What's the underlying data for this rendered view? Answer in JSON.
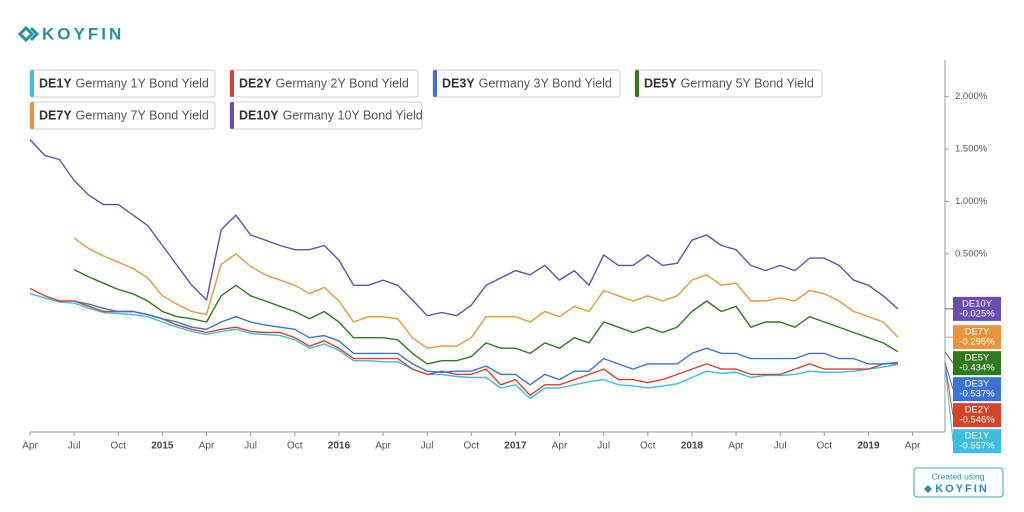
{
  "brand": "KOYFIN",
  "credit": "Created using",
  "chart_data": {
    "type": "line",
    "x": [
      "2014-04",
      "2014-05",
      "2014-06",
      "2014-07",
      "2014-08",
      "2014-09",
      "2014-10",
      "2014-11",
      "2014-12",
      "2015-01",
      "2015-02",
      "2015-03",
      "2015-04",
      "2015-05",
      "2015-06",
      "2015-07",
      "2015-08",
      "2015-09",
      "2015-10",
      "2015-11",
      "2015-12",
      "2016-01",
      "2016-02",
      "2016-03",
      "2016-04",
      "2016-05",
      "2016-06",
      "2016-07",
      "2016-08",
      "2016-09",
      "2016-10",
      "2016-11",
      "2016-12",
      "2017-01",
      "2017-02",
      "2017-03",
      "2017-04",
      "2017-05",
      "2017-06",
      "2017-07",
      "2017-08",
      "2017-09",
      "2017-10",
      "2017-11",
      "2017-12",
      "2018-01",
      "2018-02",
      "2018-03",
      "2018-04",
      "2018-05",
      "2018-06",
      "2018-07",
      "2018-08",
      "2018-09",
      "2018-10",
      "2018-11",
      "2018-12",
      "2019-01",
      "2019-02",
      "2019-03"
    ],
    "xlim": [
      "2014-04",
      "2019-06"
    ],
    "xticks": [
      {
        "value": "2014-04",
        "label": "Apr"
      },
      {
        "value": "2014-07",
        "label": "Jul"
      },
      {
        "value": "2014-10",
        "label": "Oct"
      },
      {
        "value": "2015-01",
        "label": "2015"
      },
      {
        "value": "2015-04",
        "label": "Apr"
      },
      {
        "value": "2015-07",
        "label": "Jul"
      },
      {
        "value": "2015-10",
        "label": "Oct"
      },
      {
        "value": "2016-01",
        "label": "2016"
      },
      {
        "value": "2016-04",
        "label": "Apr"
      },
      {
        "value": "2016-07",
        "label": "Jul"
      },
      {
        "value": "2016-10",
        "label": "Oct"
      },
      {
        "value": "2017-01",
        "label": "2017"
      },
      {
        "value": "2017-04",
        "label": "Apr"
      },
      {
        "value": "2017-07",
        "label": "Jul"
      },
      {
        "value": "2017-10",
        "label": "Oct"
      },
      {
        "value": "2018-01",
        "label": "2018"
      },
      {
        "value": "2018-04",
        "label": "Apr"
      },
      {
        "value": "2018-07",
        "label": "Jul"
      },
      {
        "value": "2018-10",
        "label": "Oct"
      },
      {
        "value": "2019-01",
        "label": "2019"
      },
      {
        "value": "2019-04",
        "label": "Apr"
      }
    ],
    "ylim": [
      -1.2,
      2.35
    ],
    "yticks": [
      {
        "value": 0.5,
        "label": "0.500%"
      },
      {
        "value": 1,
        "label": "1.000%"
      },
      {
        "value": 1.5,
        "label": "1.500%"
      },
      {
        "value": 2,
        "label": "2.000%"
      }
    ],
    "series": [
      {
        "ticker": "DE1Y",
        "name": "Germany 1Y Bond Yield",
        "color": "#3dbde0",
        "last_label": "-0.557%",
        "values": [
          0.12,
          0.08,
          0.04,
          0.03,
          -0.02,
          -0.06,
          -0.07,
          -0.08,
          -0.1,
          -0.15,
          -0.2,
          -0.24,
          -0.27,
          -0.24,
          -0.22,
          -0.26,
          -0.27,
          -0.28,
          -0.32,
          -0.4,
          -0.36,
          -0.42,
          -0.52,
          -0.52,
          -0.53,
          -0.53,
          -0.6,
          -0.65,
          -0.65,
          -0.67,
          -0.68,
          -0.68,
          -0.78,
          -0.75,
          -0.88,
          -0.78,
          -0.78,
          -0.75,
          -0.72,
          -0.7,
          -0.75,
          -0.76,
          -0.78,
          -0.76,
          -0.74,
          -0.68,
          -0.62,
          -0.64,
          -0.63,
          -0.68,
          -0.66,
          -0.66,
          -0.65,
          -0.62,
          -0.63,
          -0.63,
          -0.62,
          -0.6,
          -0.58,
          -0.557
        ]
      },
      {
        "ticker": "DE2Y",
        "name": "Germany 2Y Bond Yield",
        "color": "#d2452b",
        "last_label": "-0.546%",
        "values": [
          0.17,
          0.1,
          0.05,
          0.05,
          0,
          -0.05,
          -0.05,
          -0.05,
          -0.08,
          -0.12,
          -0.18,
          -0.22,
          -0.25,
          -0.22,
          -0.2,
          -0.24,
          -0.25,
          -0.25,
          -0.3,
          -0.38,
          -0.33,
          -0.4,
          -0.5,
          -0.5,
          -0.5,
          -0.5,
          -0.6,
          -0.65,
          -0.62,
          -0.65,
          -0.65,
          -0.6,
          -0.75,
          -0.7,
          -0.85,
          -0.75,
          -0.75,
          -0.7,
          -0.65,
          -0.6,
          -0.7,
          -0.7,
          -0.73,
          -0.7,
          -0.65,
          -0.6,
          -0.55,
          -0.6,
          -0.6,
          -0.65,
          -0.65,
          -0.65,
          -0.6,
          -0.55,
          -0.6,
          -0.6,
          -0.6,
          -0.6,
          -0.55,
          -0.546
        ]
      },
      {
        "ticker": "DE3Y",
        "name": "Germany 3Y Bond Yield",
        "color": "#3c72d6",
        "last_label": "-0.537%",
        "values": [
          null,
          null,
          null,
          0.05,
          0.02,
          -0.02,
          -0.05,
          -0.05,
          -0.08,
          -0.12,
          -0.15,
          -0.2,
          -0.22,
          -0.15,
          -0.1,
          -0.15,
          -0.18,
          -0.2,
          -0.22,
          -0.3,
          -0.28,
          -0.33,
          -0.45,
          -0.45,
          -0.45,
          -0.45,
          -0.55,
          -0.62,
          -0.63,
          -0.62,
          -0.62,
          -0.57,
          -0.65,
          -0.65,
          -0.75,
          -0.65,
          -0.7,
          -0.62,
          -0.62,
          -0.5,
          -0.55,
          -0.6,
          -0.55,
          -0.55,
          -0.55,
          -0.45,
          -0.4,
          -0.45,
          -0.45,
          -0.5,
          -0.5,
          -0.5,
          -0.5,
          -0.45,
          -0.45,
          -0.5,
          -0.5,
          -0.55,
          -0.55,
          -0.537
        ]
      },
      {
        "ticker": "DE5Y",
        "name": "Germany 5Y Bond Yield",
        "color": "#2f7a1f",
        "last_label": "-0.434%",
        "values": [
          null,
          null,
          null,
          0.35,
          0.28,
          0.22,
          0.16,
          0.12,
          0.05,
          -0.05,
          -0.1,
          -0.12,
          -0.15,
          0.1,
          0.2,
          0.1,
          0.05,
          0,
          -0.05,
          -0.12,
          -0.05,
          -0.15,
          -0.3,
          -0.3,
          -0.3,
          -0.32,
          -0.45,
          -0.55,
          -0.52,
          -0.52,
          -0.48,
          -0.35,
          -0.4,
          -0.4,
          -0.45,
          -0.35,
          -0.4,
          -0.3,
          -0.35,
          -0.15,
          -0.2,
          -0.25,
          -0.2,
          -0.25,
          -0.2,
          -0.05,
          0.05,
          -0.05,
          0,
          -0.2,
          -0.15,
          -0.15,
          -0.2,
          -0.1,
          -0.15,
          -0.2,
          -0.25,
          -0.3,
          -0.35,
          -0.434
        ]
      },
      {
        "ticker": "DE7Y",
        "name": "Germany 7Y Bond Yield",
        "color": "#e8953a",
        "last_label": "-0.295%",
        "values": [
          null,
          null,
          null,
          0.65,
          0.55,
          0.48,
          0.42,
          0.36,
          0.27,
          0.1,
          0.02,
          -0.05,
          -0.08,
          0.4,
          0.5,
          0.38,
          0.3,
          0.25,
          0.2,
          0.12,
          0.18,
          0.05,
          -0.15,
          -0.1,
          -0.1,
          -0.12,
          -0.3,
          -0.4,
          -0.38,
          -0.38,
          -0.3,
          -0.1,
          -0.1,
          -0.1,
          -0.15,
          -0.05,
          -0.1,
          0,
          -0.05,
          0.15,
          0.1,
          0.05,
          0.1,
          0.05,
          0.1,
          0.25,
          0.3,
          0.2,
          0.22,
          0.05,
          0.05,
          0.08,
          0.05,
          0.15,
          0.12,
          0.05,
          -0.05,
          -0.1,
          -0.15,
          -0.295
        ]
      },
      {
        "ticker": "DE10Y",
        "name": "Germany 10Y Bond Yield",
        "color": "#6a4dae",
        "last_label": "-0.025%",
        "values": [
          1.59,
          1.44,
          1.4,
          1.2,
          1.06,
          0.97,
          0.97,
          0.87,
          0.77,
          0.58,
          0.39,
          0.2,
          0.06,
          0.73,
          0.87,
          0.68,
          0.63,
          0.58,
          0.54,
          0.54,
          0.58,
          0.44,
          0.2,
          0.2,
          0.25,
          0.2,
          0.06,
          -0.09,
          -0.06,
          -0.09,
          0.01,
          0.2,
          0.27,
          0.34,
          0.3,
          0.39,
          0.25,
          0.34,
          0.2,
          0.49,
          0.39,
          0.39,
          0.49,
          0.39,
          0.41,
          0.63,
          0.68,
          0.58,
          0.54,
          0.39,
          0.34,
          0.39,
          0.34,
          0.46,
          0.46,
          0.39,
          0.25,
          0.2,
          0.1,
          -0.025
        ]
      }
    ]
  }
}
